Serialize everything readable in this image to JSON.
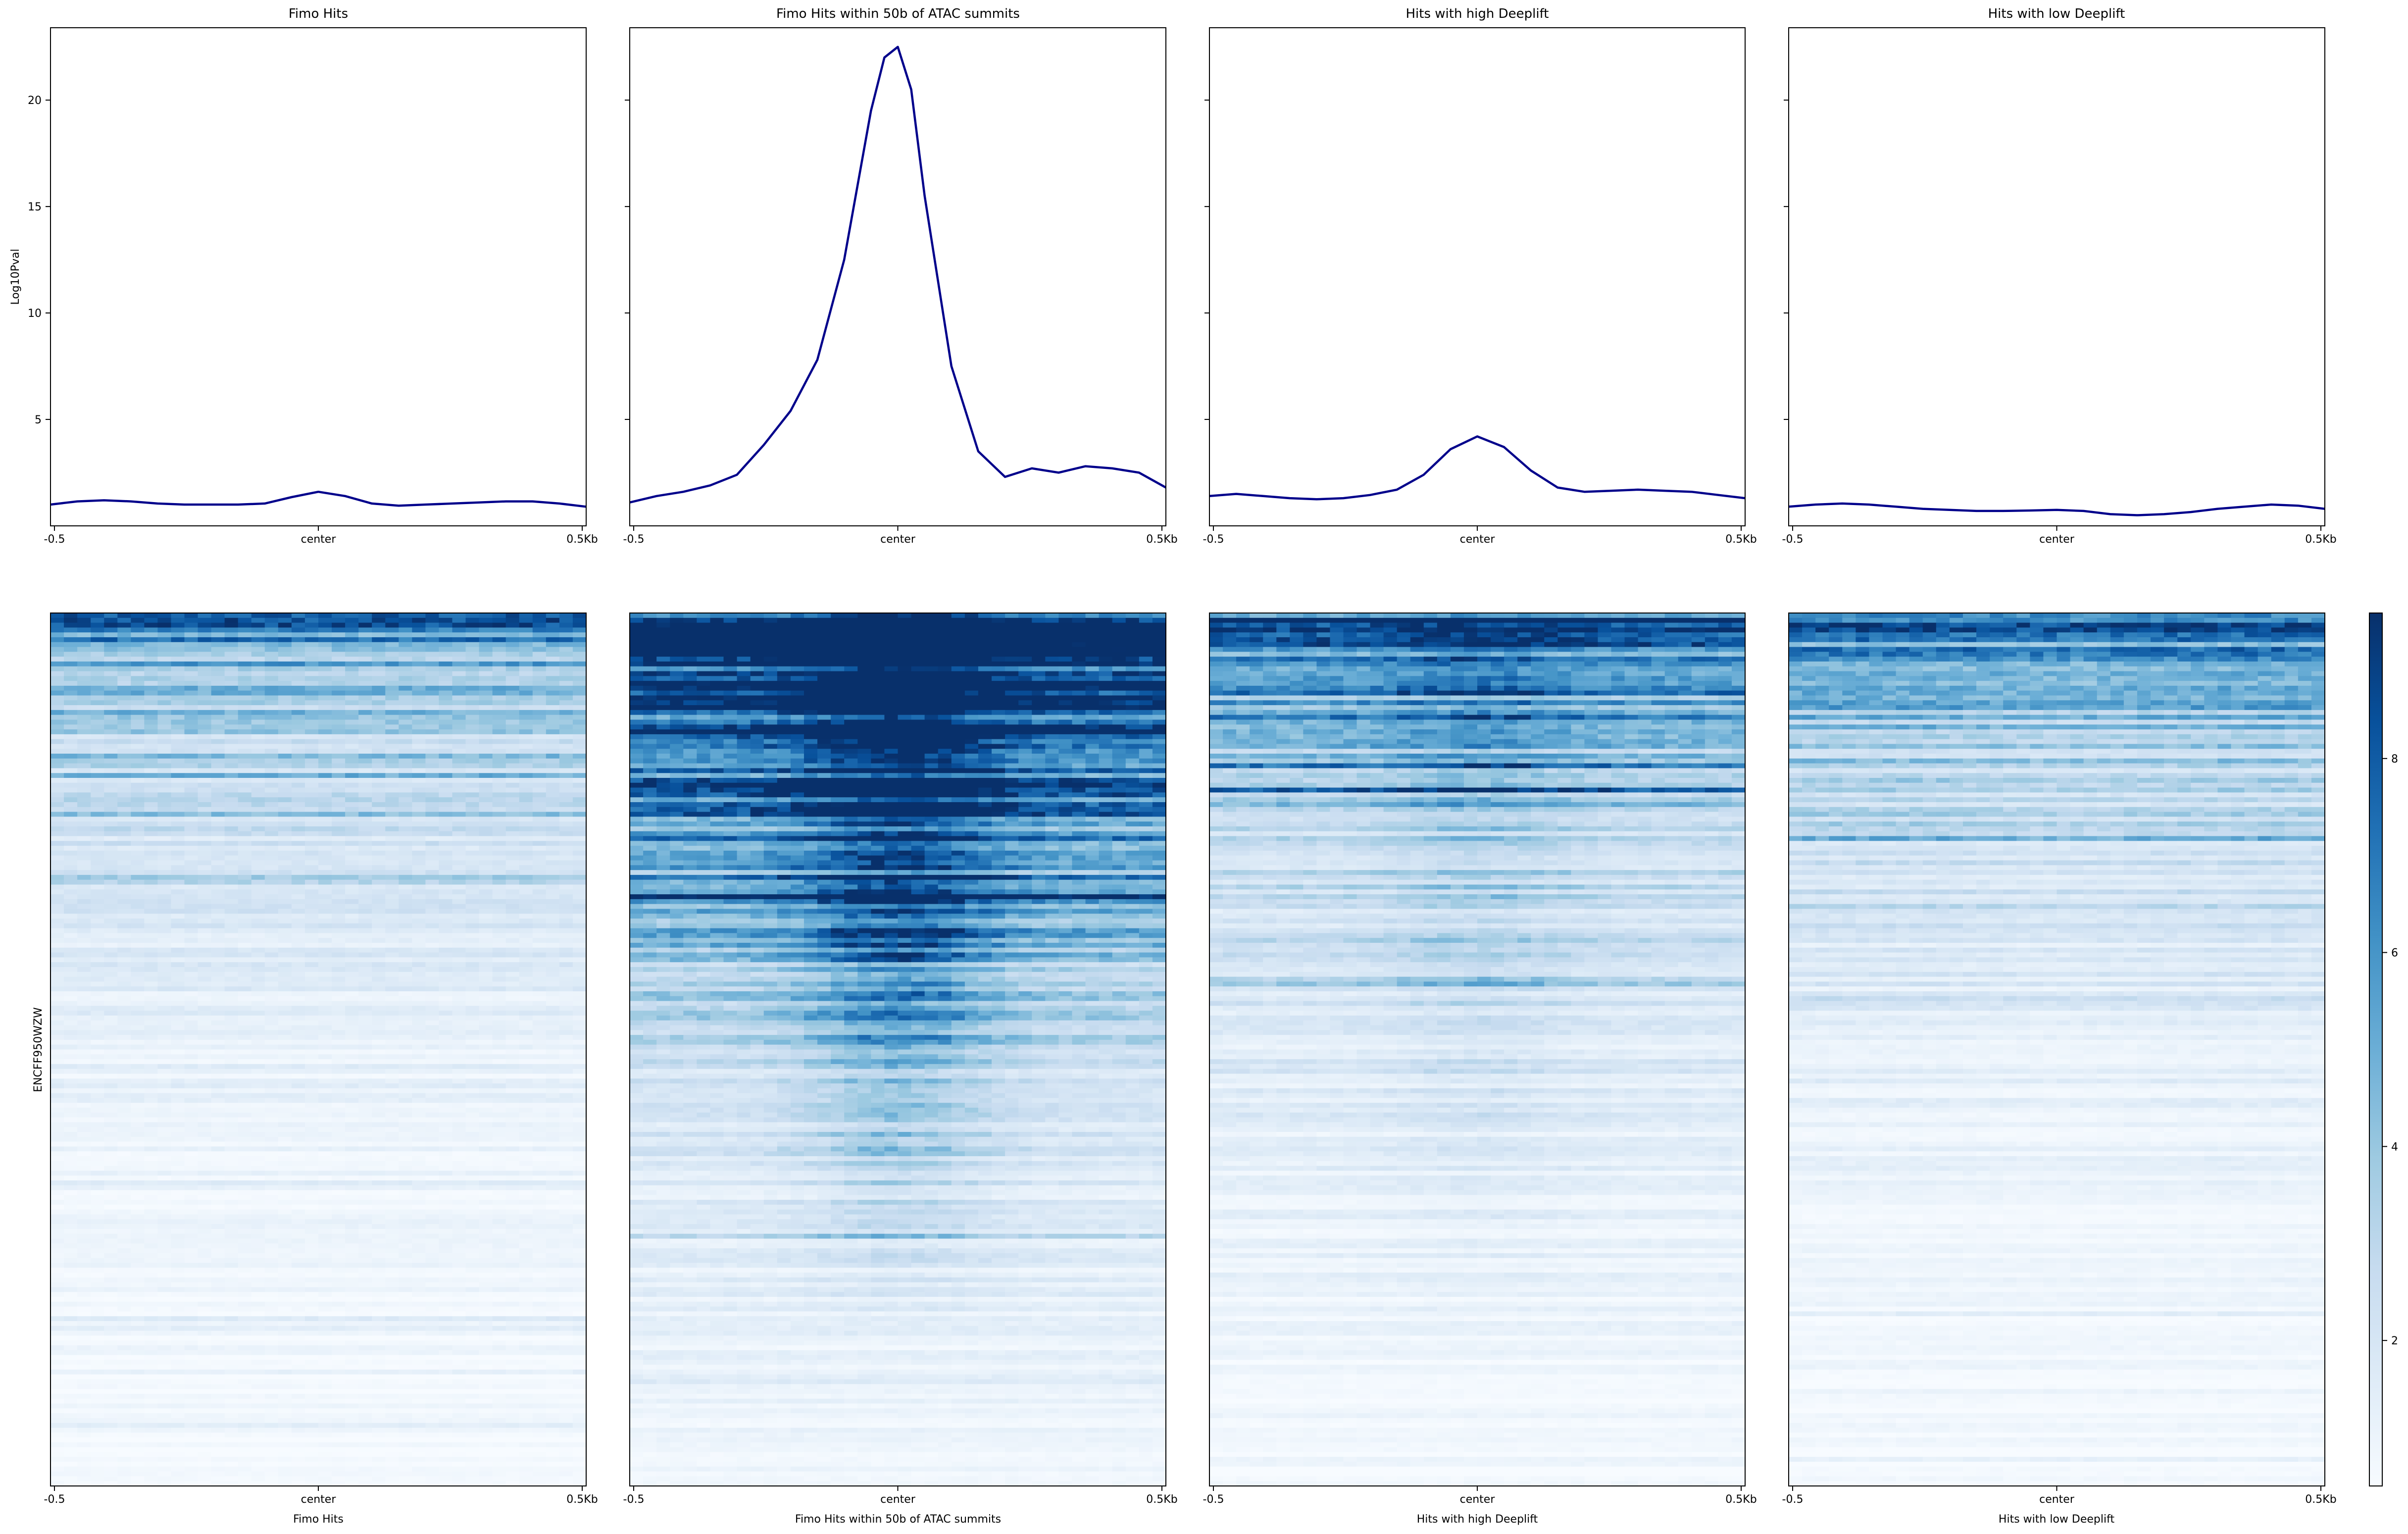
{
  "chart_data": {
    "type": "heatmap",
    "profile": {
      "ylabel": "Log10Pval",
      "yticks": [
        5,
        10,
        15,
        20
      ],
      "ylim": [
        0.0,
        23.4
      ],
      "xlim": [
        -0.5,
        0.5
      ],
      "line_color": "#00008b",
      "panels": [
        {
          "title": "Fimo Hits",
          "x": [
            -0.5,
            -0.45,
            -0.4,
            -0.35,
            -0.3,
            -0.25,
            -0.2,
            -0.15,
            -0.1,
            -0.05,
            0.0,
            0.05,
            0.1,
            0.15,
            0.2,
            0.25,
            0.3,
            0.35,
            0.4,
            0.45,
            0.5
          ],
          "y": [
            1.0,
            1.15,
            1.2,
            1.15,
            1.05,
            1.0,
            1.0,
            1.0,
            1.05,
            1.35,
            1.6,
            1.4,
            1.05,
            0.95,
            1.0,
            1.05,
            1.1,
            1.15,
            1.15,
            1.05,
            0.9
          ]
        },
        {
          "title": "Fimo Hits within 50b of ATAC summits",
          "x": [
            -0.5,
            -0.45,
            -0.4,
            -0.35,
            -0.3,
            -0.25,
            -0.2,
            -0.15,
            -0.1,
            -0.05,
            -0.025,
            0.0,
            0.025,
            0.05,
            0.1,
            0.15,
            0.2,
            0.25,
            0.3,
            0.35,
            0.4,
            0.45,
            0.5
          ],
          "y": [
            1.1,
            1.4,
            1.6,
            1.9,
            2.4,
            3.8,
            5.4,
            7.8,
            12.5,
            19.5,
            22.0,
            22.5,
            20.5,
            15.5,
            7.5,
            3.5,
            2.3,
            2.7,
            2.5,
            2.8,
            2.7,
            2.5,
            1.8
          ]
        },
        {
          "title": "Hits with high Deeplift",
          "x": [
            -0.5,
            -0.45,
            -0.4,
            -0.35,
            -0.3,
            -0.25,
            -0.2,
            -0.15,
            -0.1,
            -0.05,
            0.0,
            0.05,
            0.1,
            0.15,
            0.2,
            0.25,
            0.3,
            0.35,
            0.4,
            0.45,
            0.5
          ],
          "y": [
            1.4,
            1.5,
            1.4,
            1.3,
            1.25,
            1.3,
            1.45,
            1.7,
            2.4,
            3.6,
            4.2,
            3.7,
            2.6,
            1.8,
            1.6,
            1.65,
            1.7,
            1.65,
            1.6,
            1.45,
            1.3
          ]
        },
        {
          "title": "Hits with low Deeplift",
          "x": [
            -0.5,
            -0.45,
            -0.4,
            -0.35,
            -0.3,
            -0.25,
            -0.2,
            -0.15,
            -0.1,
            -0.05,
            0.0,
            0.05,
            0.1,
            0.15,
            0.2,
            0.25,
            0.3,
            0.35,
            0.4,
            0.45,
            0.5
          ],
          "y": [
            0.9,
            1.0,
            1.05,
            1.0,
            0.9,
            0.8,
            0.75,
            0.7,
            0.7,
            0.72,
            0.75,
            0.7,
            0.55,
            0.5,
            0.55,
            0.65,
            0.8,
            0.9,
            1.0,
            0.95,
            0.8
          ]
        }
      ]
    },
    "heatmap": {
      "ylabel": "ENCFF950WZW",
      "colormap": "Blues",
      "vmin": 0.5,
      "vmax": 9.5,
      "colorbar_ticks": [
        2,
        4,
        6,
        8
      ],
      "panels": [
        {
          "xlabel": "Fimo Hits",
          "row_intensity": [
            [
              0.0,
              7.0
            ],
            [
              0.03,
              5.5
            ],
            [
              0.1,
              3.8
            ],
            [
              0.2,
              2.5
            ],
            [
              0.35,
              1.6
            ],
            [
              0.5,
              1.2
            ],
            [
              0.7,
              0.9
            ],
            [
              1.0,
              0.6
            ]
          ],
          "center_boost": 0.0
        },
        {
          "xlabel": "Fimo Hits within 50b of ATAC summits",
          "row_intensity": [
            [
              0.0,
              9.5
            ],
            [
              0.05,
              9.0
            ],
            [
              0.15,
              7.5
            ],
            [
              0.25,
              6.0
            ],
            [
              0.4,
              3.5
            ],
            [
              0.6,
              1.8
            ],
            [
              0.8,
              1.2
            ],
            [
              1.0,
              0.9
            ]
          ],
          "center_boost": 6.0
        },
        {
          "xlabel": "Hits with high Deeplift",
          "row_intensity": [
            [
              0.0,
              8.0
            ],
            [
              0.05,
              6.5
            ],
            [
              0.15,
              4.3
            ],
            [
              0.3,
              2.6
            ],
            [
              0.5,
              1.6
            ],
            [
              0.7,
              1.1
            ],
            [
              1.0,
              0.7
            ]
          ],
          "center_boost": 1.5
        },
        {
          "xlabel": "Hits with low Deeplift",
          "row_intensity": [
            [
              0.0,
              7.0
            ],
            [
              0.05,
              5.0
            ],
            [
              0.15,
              3.5
            ],
            [
              0.3,
              2.2
            ],
            [
              0.5,
              1.3
            ],
            [
              0.7,
              0.9
            ],
            [
              1.0,
              0.6
            ]
          ],
          "center_boost": -0.3
        }
      ]
    },
    "xticks": [
      "-0.5",
      "center",
      "0.5Kb"
    ]
  }
}
